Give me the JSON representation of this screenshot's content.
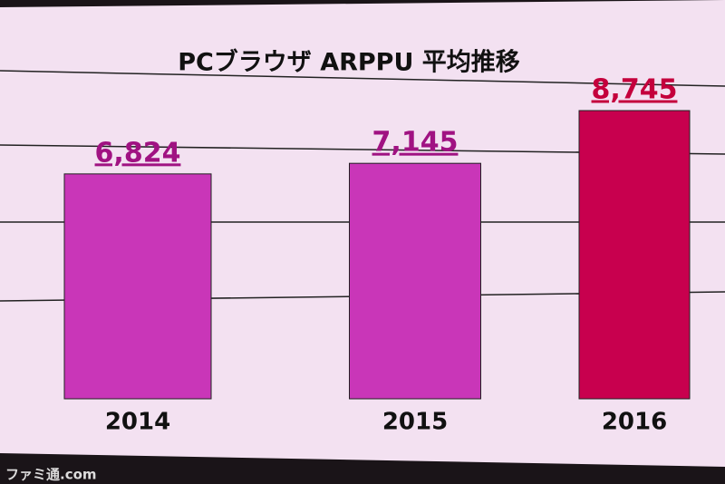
{
  "chart_data": {
    "type": "bar",
    "title": "PCブラウザ ARPPU 平均推移",
    "categories": [
      "2014",
      "2015",
      "2016"
    ],
    "values": [
      6824,
      7145,
      8745
    ],
    "value_labels": [
      "6,824",
      "7,145",
      "8,745"
    ],
    "colors": [
      "#c936b8",
      "#c936b8",
      "#c8004e"
    ],
    "label_colors": [
      "#a01282",
      "#a01282",
      "#c4003c"
    ]
  },
  "watermark": "ファミ通.com"
}
